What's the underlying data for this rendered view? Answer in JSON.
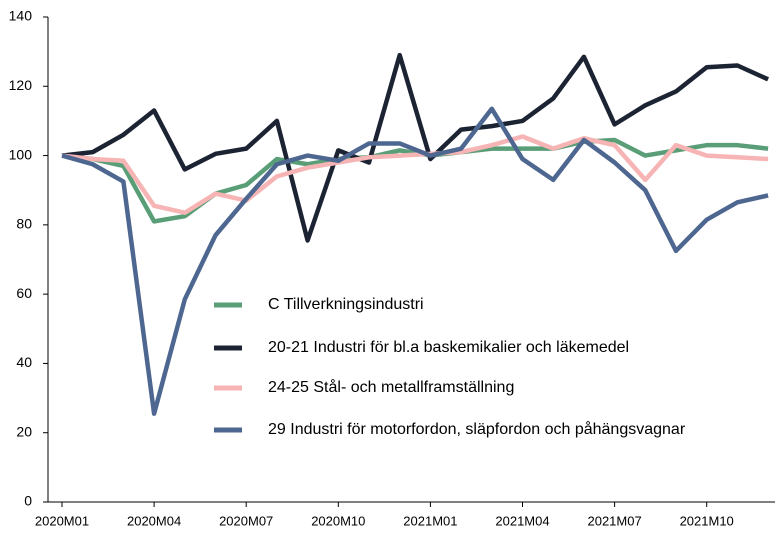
{
  "chart_data": {
    "type": "line",
    "categories": [
      "2020M01",
      null,
      null,
      "2020M04",
      null,
      null,
      "2020M07",
      null,
      null,
      "2020M10",
      null,
      null,
      "2021M01",
      null,
      null,
      "2021M04",
      null,
      null,
      "2021M07",
      null,
      null,
      "2021M10",
      null,
      null
    ],
    "series": [
      {
        "name": "C Tillverkningsindustri",
        "color": "#5a9e78",
        "values": [
          100,
          99,
          97,
          81,
          82.5,
          89,
          91.5,
          99,
          97.5,
          99,
          99.5,
          101.5,
          100,
          101,
          102,
          102,
          102,
          104,
          104.5,
          100,
          101.5,
          103,
          103,
          102
        ]
      },
      {
        "name": "20-21 Industri för bl.a baskemikalier och läkemedel",
        "color": "#1c2333",
        "values": [
          100,
          101,
          106,
          113,
          96,
          100.5,
          102,
          110,
          75.5,
          101.5,
          98,
          129,
          99,
          107.5,
          108.5,
          110,
          116.5,
          128.5,
          109,
          114.5,
          118.5,
          125.5,
          126,
          122
        ]
      },
      {
        "name": "24-25 Stål- och metallframställning",
        "color": "#f7b4b4",
        "values": [
          100,
          99,
          98.5,
          85.5,
          83.5,
          89,
          87,
          94,
          96.5,
          98,
          99.5,
          100,
          100.5,
          101,
          103,
          105.5,
          102,
          105,
          103,
          93,
          103,
          100,
          99.5,
          99
        ]
      },
      {
        "name": "29 Industri för motorfordon, släpfordon och påhängsvagnar",
        "color": "#4e6790",
        "values": [
          100,
          97.5,
          92.5,
          25.5,
          58.5,
          77,
          87.5,
          97.5,
          100,
          98.5,
          103.5,
          103.5,
          100,
          102,
          113.5,
          99,
          93,
          104.5,
          98,
          90,
          72.5,
          81.5,
          86.5,
          88.5
        ]
      }
    ],
    "ylim": [
      0,
      140
    ],
    "yticks": [
      0,
      20,
      40,
      60,
      80,
      100,
      120,
      140
    ],
    "grid": false,
    "legend": "center"
  }
}
